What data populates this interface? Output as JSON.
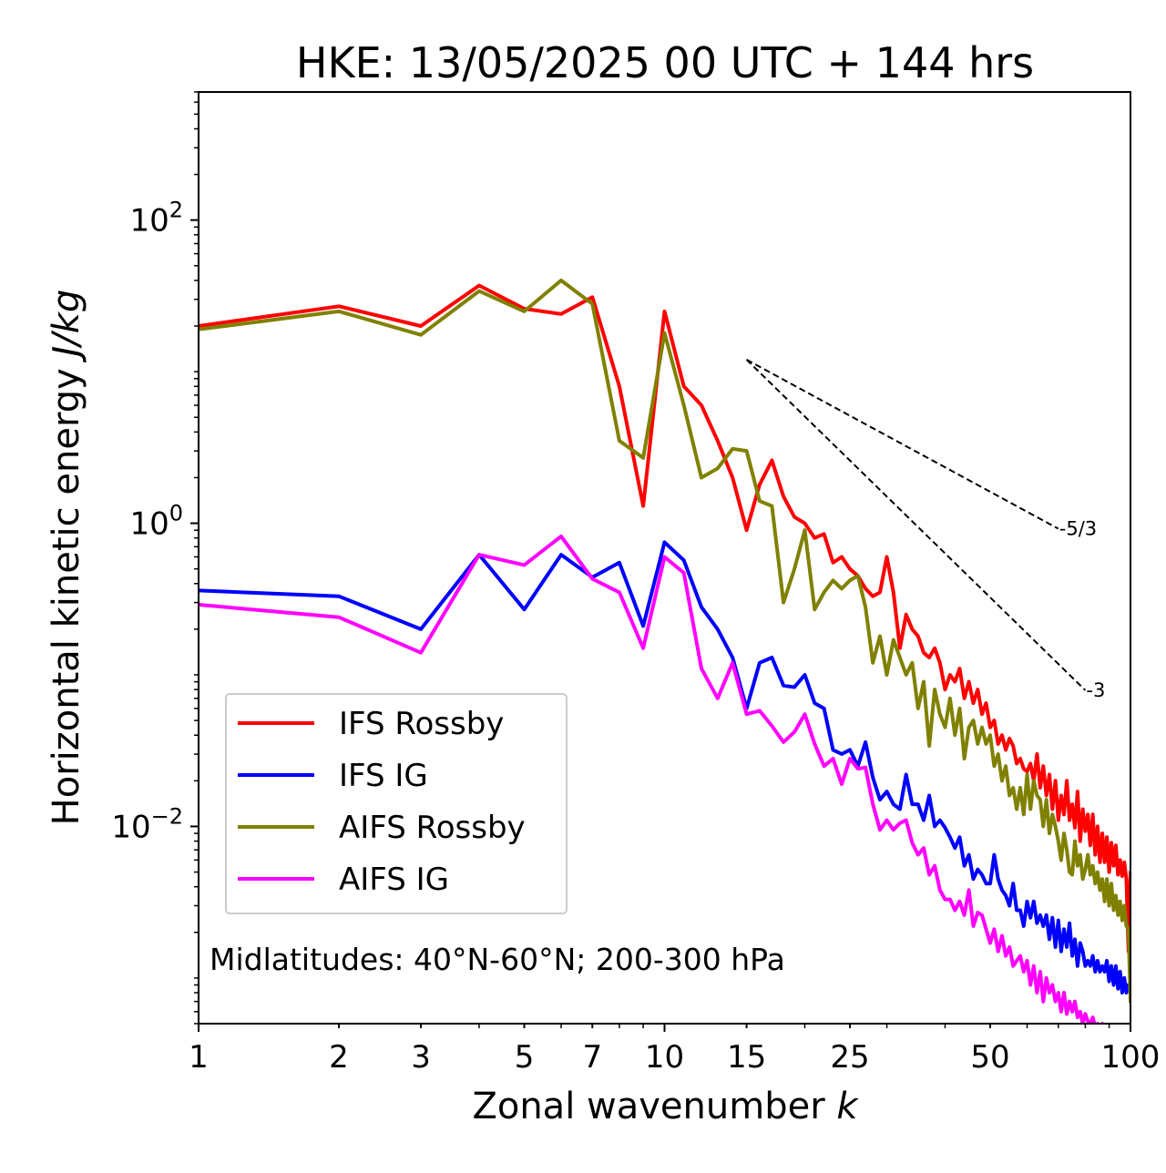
{
  "chart_data": {
    "type": "line",
    "title": "HKE: 13/05/2025 00 UTC + 144 hrs",
    "xlabel": "Zonal wavenumber",
    "xlabel_var": "k",
    "ylabel": "Horizontal kinetic energy",
    "ylabel_unit": "J/kg",
    "x_scale": "log",
    "y_scale": "log",
    "xlim": [
      1,
      100
    ],
    "ylim": [
      0.0005,
      700
    ],
    "x_ticks": [
      1,
      2,
      3,
      5,
      7,
      10,
      15,
      25,
      50,
      100
    ],
    "x_tick_labels": [
      "1",
      "2",
      "3",
      "5",
      "7",
      "10",
      "15",
      "25",
      "50",
      "100"
    ],
    "y_ticks": [
      {
        "value": 100,
        "base": "10",
        "exp": "2"
      },
      {
        "value": 1,
        "base": "10",
        "exp": "0"
      },
      {
        "value": 0.01,
        "base": "10",
        "exp": "−2"
      }
    ],
    "grid": false,
    "legend_position": "lower-left",
    "annotation": "Midlatitudes: 40°N-60°N; 200-300 hPa",
    "reference_lines": [
      {
        "label": "-5/3",
        "slope": -1.6667,
        "x_start": 15,
        "y_start": 12,
        "x_end": 70
      },
      {
        "label": "-3",
        "slope": -3,
        "x_start": 15,
        "y_start": 12,
        "x_end": 80
      }
    ],
    "series": [
      {
        "name": "IFS Rossby",
        "color": "#ff0000",
        "x": [
          1,
          2,
          3,
          4,
          5,
          6,
          7,
          8,
          9,
          10,
          11,
          12,
          13,
          14,
          15,
          16,
          17,
          18,
          19,
          20,
          21,
          22,
          23,
          24,
          25,
          26,
          27,
          28,
          29,
          30,
          31,
          32,
          33,
          34,
          35,
          36,
          37,
          38,
          39,
          40,
          41,
          42,
          43,
          44,
          45,
          46,
          47,
          48,
          49,
          50,
          51,
          52,
          53,
          54,
          55,
          56,
          57,
          58,
          59,
          60,
          61,
          62,
          63,
          64,
          65,
          66,
          67,
          68,
          69,
          70,
          71,
          72,
          73,
          74,
          75,
          76,
          77,
          78,
          79,
          80,
          81,
          82,
          83,
          84,
          85,
          86,
          87,
          88,
          89,
          90,
          91,
          92,
          93,
          94,
          95,
          96,
          97,
          98,
          99,
          100
        ],
        "y": [
          20,
          27,
          20,
          37,
          26,
          24,
          31,
          8,
          1.3,
          25,
          8,
          6,
          3.5,
          2,
          0.9,
          1.8,
          2.6,
          1.5,
          1.1,
          1,
          0.8,
          0.85,
          0.55,
          0.6,
          0.5,
          0.45,
          0.37,
          0.33,
          0.35,
          0.6,
          0.35,
          0.15,
          0.25,
          0.2,
          0.18,
          0.14,
          0.13,
          0.15,
          0.12,
          0.08,
          0.1,
          0.09,
          0.11,
          0.07,
          0.09,
          0.065,
          0.08,
          0.055,
          0.065,
          0.045,
          0.05,
          0.035,
          0.04,
          0.032,
          0.038,
          0.034,
          0.026,
          0.028,
          0.024,
          0.023,
          0.026,
          0.02,
          0.03,
          0.018,
          0.025,
          0.016,
          0.022,
          0.013,
          0.02,
          0.011,
          0.016,
          0.012,
          0.02,
          0.011,
          0.014,
          0.0098,
          0.017,
          0.008,
          0.013,
          0.0093,
          0.012,
          0.0075,
          0.012,
          0.0065,
          0.01,
          0.0058,
          0.009,
          0.0058,
          0.0085,
          0.005,
          0.0078,
          0.0055,
          0.0075,
          0.0048,
          0.006,
          0.0047,
          0.0058,
          0.0045,
          0.0015,
          0.005
        ]
      },
      {
        "name": "IFS IG",
        "color": "#0000ff",
        "x": [
          1,
          2,
          3,
          4,
          5,
          6,
          7,
          8,
          9,
          10,
          11,
          12,
          13,
          14,
          15,
          16,
          17,
          18,
          19,
          20,
          21,
          22,
          23,
          24,
          25,
          26,
          27,
          28,
          29,
          30,
          31,
          32,
          33,
          34,
          35,
          36,
          37,
          38,
          39,
          40,
          41,
          42,
          43,
          44,
          45,
          46,
          47,
          48,
          49,
          50,
          51,
          52,
          53,
          54,
          55,
          56,
          57,
          58,
          59,
          60,
          61,
          62,
          63,
          64,
          65,
          66,
          67,
          68,
          69,
          70,
          71,
          72,
          73,
          74,
          75,
          76,
          77,
          78,
          79,
          80,
          81,
          82,
          83,
          84,
          85,
          86,
          87,
          88,
          89,
          90,
          91,
          92,
          93,
          94,
          95,
          96,
          97,
          98,
          99,
          100
        ],
        "y": [
          0.36,
          0.33,
          0.2,
          0.62,
          0.27,
          0.62,
          0.44,
          0.55,
          0.21,
          0.75,
          0.57,
          0.28,
          0.2,
          0.13,
          0.06,
          0.12,
          0.13,
          0.085,
          0.083,
          0.1,
          0.065,
          0.06,
          0.032,
          0.03,
          0.032,
          0.025,
          0.036,
          0.021,
          0.015,
          0.017,
          0.014,
          0.013,
          0.022,
          0.014,
          0.014,
          0.011,
          0.016,
          0.01,
          0.011,
          0.0098,
          0.0085,
          0.0072,
          0.0085,
          0.0055,
          0.0065,
          0.0045,
          0.0052,
          0.0048,
          0.0042,
          0.0042,
          0.0065,
          0.0045,
          0.0038,
          0.0035,
          0.003,
          0.0042,
          0.0028,
          0.0028,
          0.0022,
          0.0032,
          0.0025,
          0.0032,
          0.0023,
          0.0026,
          0.0022,
          0.0026,
          0.0018,
          0.0025,
          0.0016,
          0.0024,
          0.0015,
          0.0021,
          0.0016,
          0.0023,
          0.0014,
          0.0018,
          0.0012,
          0.0017,
          0.0015,
          0.0012,
          0.0013,
          0.0012,
          0.0014,
          0.0011,
          0.0013,
          0.0011,
          0.0012,
          0.0011,
          0.0013,
          0.00095,
          0.0012,
          0.0009,
          0.0012,
          0.00085,
          0.0011,
          0.0008,
          0.001,
          0.0008,
          0.0009,
          0.00085
        ]
      },
      {
        "name": "AIFS Rossby",
        "color": "#808000",
        "x": [
          1,
          2,
          3,
          4,
          5,
          6,
          7,
          8,
          9,
          10,
          11,
          12,
          13,
          14,
          15,
          16,
          17,
          18,
          19,
          20,
          21,
          22,
          23,
          24,
          25,
          26,
          27,
          28,
          29,
          30,
          31,
          32,
          33,
          34,
          35,
          36,
          37,
          38,
          39,
          40,
          41,
          42,
          43,
          44,
          45,
          46,
          47,
          48,
          49,
          50,
          51,
          52,
          53,
          54,
          55,
          56,
          57,
          58,
          59,
          60,
          61,
          62,
          63,
          64,
          65,
          66,
          67,
          68,
          69,
          70,
          71,
          72,
          73,
          74,
          75,
          76,
          77,
          78,
          79,
          80,
          81,
          82,
          83,
          84,
          85,
          86,
          87,
          88,
          89,
          90,
          91,
          92,
          93,
          94,
          95,
          96,
          97,
          98,
          99,
          100
        ],
        "y": [
          19,
          25,
          17.5,
          34,
          25,
          40,
          28,
          3.5,
          2.7,
          18,
          6,
          2,
          2.3,
          3.1,
          3,
          1.4,
          1.3,
          0.3,
          0.5,
          0.9,
          0.27,
          0.35,
          0.42,
          0.37,
          0.42,
          0.45,
          0.28,
          0.12,
          0.18,
          0.1,
          0.17,
          0.13,
          0.1,
          0.12,
          0.06,
          0.09,
          0.034,
          0.08,
          0.055,
          0.045,
          0.07,
          0.04,
          0.06,
          0.028,
          0.045,
          0.05,
          0.035,
          0.045,
          0.035,
          0.04,
          0.025,
          0.03,
          0.02,
          0.025,
          0.016,
          0.018,
          0.013,
          0.018,
          0.012,
          0.022,
          0.013,
          0.02,
          0.016,
          0.015,
          0.01,
          0.015,
          0.009,
          0.012,
          0.01,
          0.008,
          0.006,
          0.009,
          0.007,
          0.005,
          0.0048,
          0.008,
          0.0055,
          0.0065,
          0.0045,
          0.0052,
          0.0065,
          0.0048,
          0.0055,
          0.0042,
          0.005,
          0.0038,
          0.0045,
          0.0032,
          0.0045,
          0.003,
          0.0042,
          0.0028,
          0.0035,
          0.0026,
          0.0032,
          0.0024,
          0.003,
          0.0022,
          0.0021,
          0.0007
        ]
      },
      {
        "name": "AIFS IG",
        "color": "#ff00ff",
        "x": [
          1,
          2,
          3,
          4,
          5,
          6,
          7,
          8,
          9,
          10,
          11,
          12,
          13,
          14,
          15,
          16,
          17,
          18,
          19,
          20,
          21,
          22,
          23,
          24,
          25,
          26,
          27,
          28,
          29,
          30,
          31,
          32,
          33,
          34,
          35,
          36,
          37,
          38,
          39,
          40,
          41,
          42,
          43,
          44,
          45,
          46,
          47,
          48,
          49,
          50,
          51,
          52,
          53,
          54,
          55,
          56,
          57,
          58,
          59,
          60,
          61,
          62,
          63,
          64,
          65,
          66,
          67,
          68,
          69,
          70,
          71,
          72,
          73,
          74,
          75,
          76,
          77,
          78,
          79,
          80,
          81,
          82,
          83,
          84,
          85,
          86,
          87,
          88,
          89,
          90,
          91,
          92,
          93,
          94,
          95,
          96,
          97,
          98,
          99,
          100
        ],
        "y": [
          0.29,
          0.24,
          0.14,
          0.62,
          0.53,
          0.82,
          0.43,
          0.35,
          0.15,
          0.6,
          0.47,
          0.11,
          0.07,
          0.12,
          0.055,
          0.058,
          0.046,
          0.036,
          0.042,
          0.055,
          0.035,
          0.025,
          0.028,
          0.019,
          0.028,
          0.024,
          0.0245,
          0.014,
          0.0095,
          0.011,
          0.0095,
          0.0105,
          0.011,
          0.0078,
          0.0065,
          0.0072,
          0.0048,
          0.0055,
          0.0038,
          0.0033,
          0.0033,
          0.0028,
          0.0032,
          0.0026,
          0.0038,
          0.0022,
          0.0027,
          0.0026,
          0.0021,
          0.0017,
          0.0021,
          0.0015,
          0.0019,
          0.0014,
          0.0016,
          0.0012,
          0.0013,
          0.0014,
          0.0011,
          0.0013,
          0.0009,
          0.0012,
          0.0008,
          0.0011,
          0.0007,
          0.001,
          0.0008,
          0.0009,
          0.0007,
          0.0008,
          0.0006,
          0.0008,
          0.00058,
          0.0007,
          0.0006,
          0.0007,
          0.00055,
          0.0006,
          0.0005,
          0.00058,
          0.00052,
          0.0005,
          0.00055,
          0.00048,
          0.0005,
          0.00045,
          0.0005,
          0.00045,
          0.00048,
          0.00042,
          0.00045,
          0.0004,
          0.00042,
          0.00038,
          0.0004,
          0.00036,
          0.00038,
          0.00035,
          0.00036,
          0.00034
        ]
      }
    ]
  }
}
